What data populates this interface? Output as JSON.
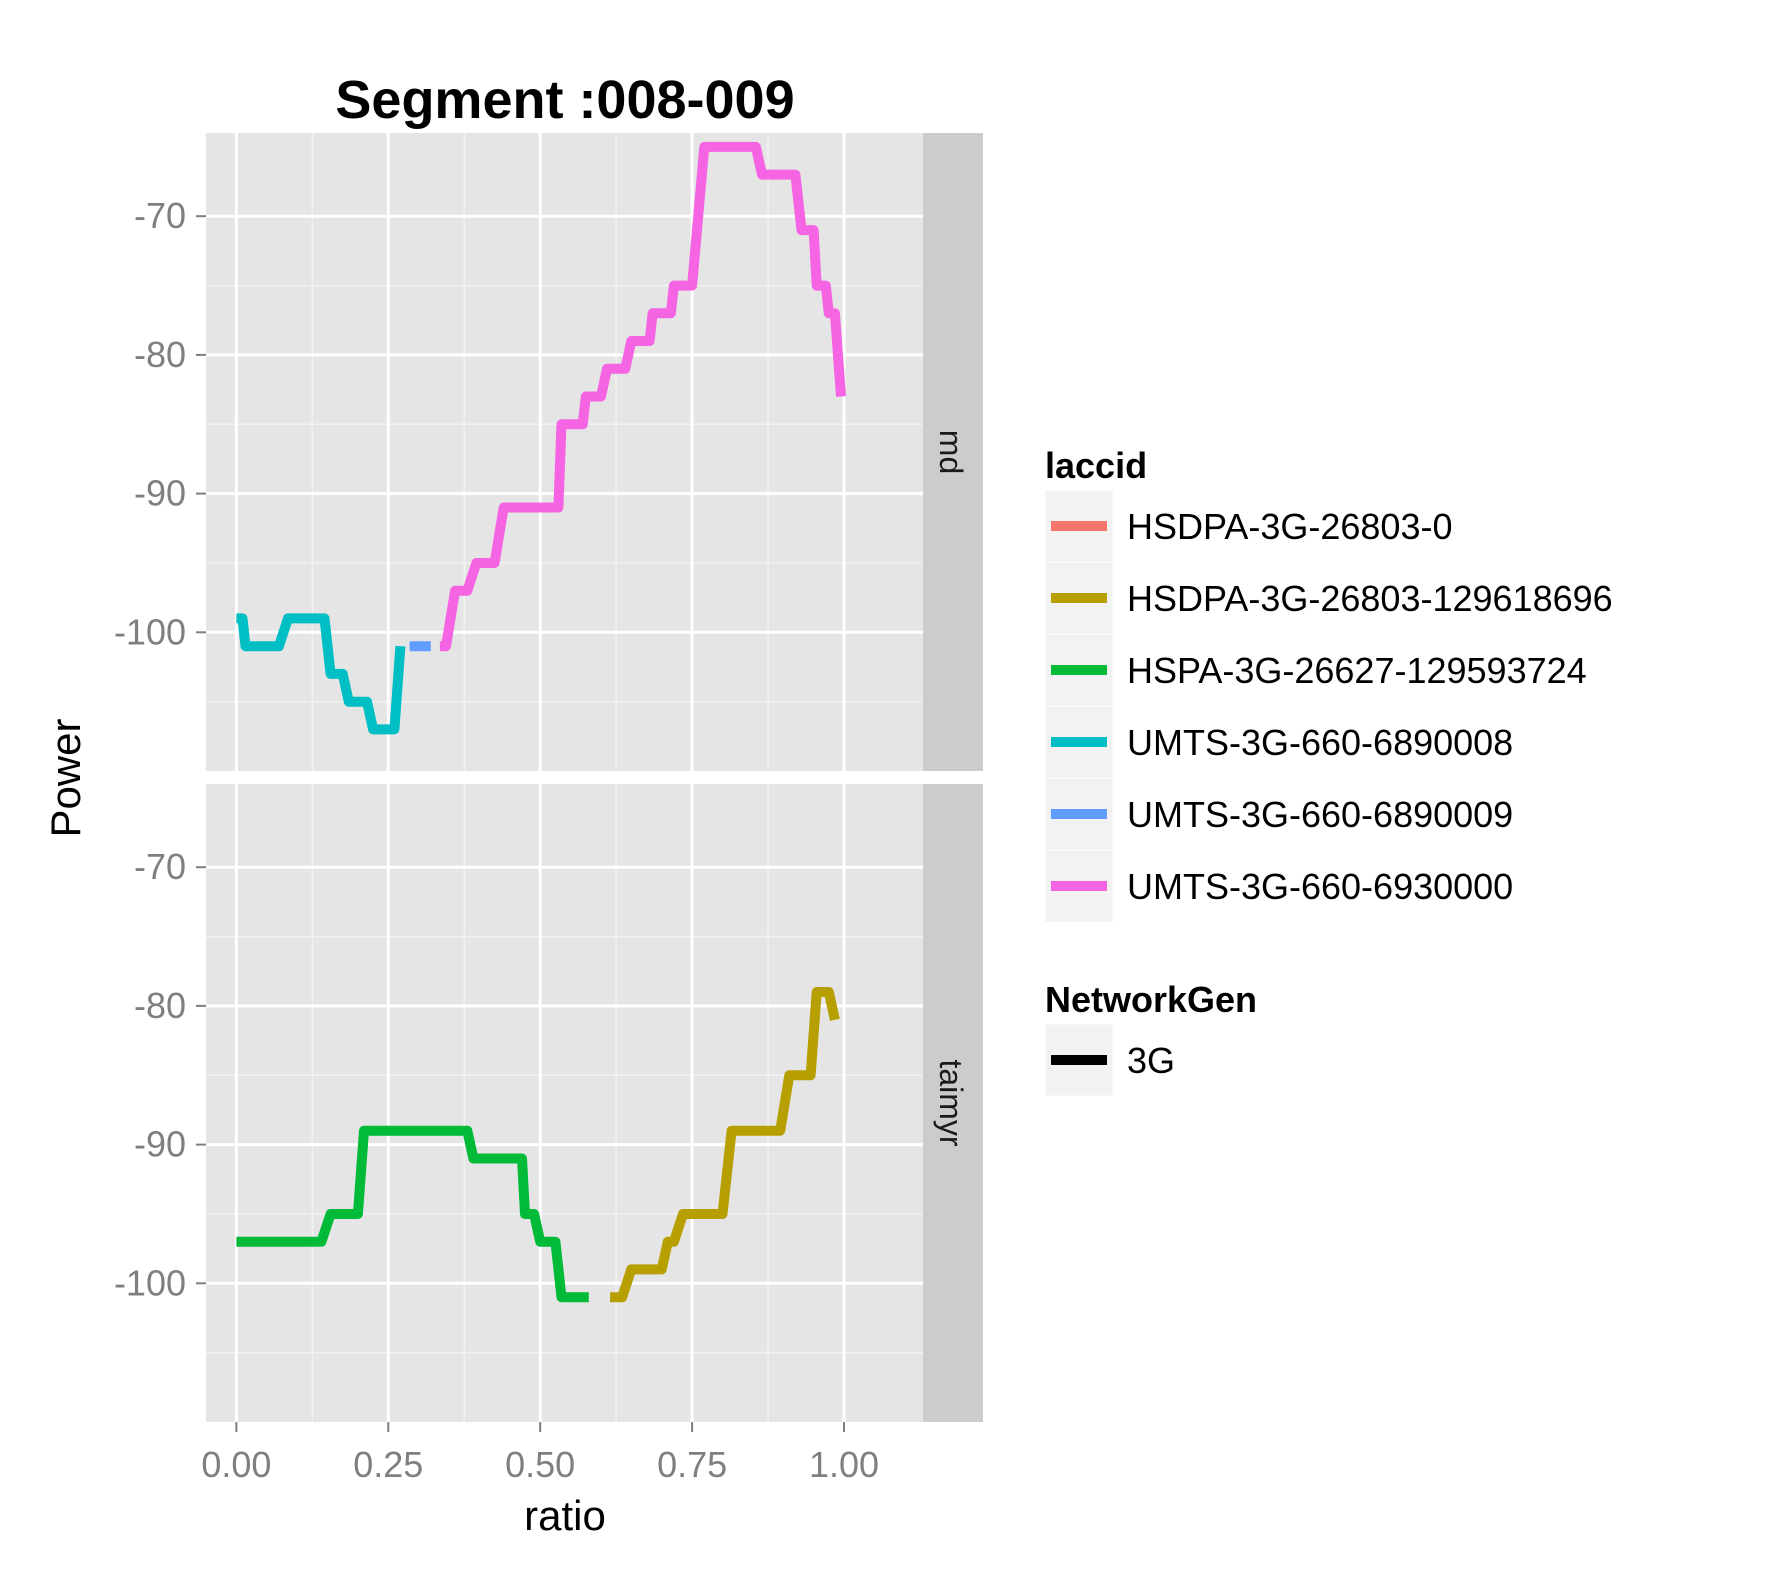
{
  "chart_data": {
    "type": "line",
    "title": "Segment :008-009",
    "xlabel": "ratio",
    "ylabel": "Power",
    "xlim": [
      -0.05,
      1.13
    ],
    "ylim": [
      -110,
      -64
    ],
    "x_ticks": [
      "0.00",
      "0.25",
      "0.50",
      "0.75",
      "1.00"
    ],
    "x_tick_values": [
      0,
      0.25,
      0.5,
      0.75,
      1
    ],
    "y_ticks": [
      "-70",
      "-80",
      "-90",
      "-100"
    ],
    "y_tick_values": [
      -70,
      -80,
      -90,
      -100
    ],
    "grid": true,
    "legend_position": "right",
    "panels": [
      {
        "label": "md",
        "series": [
          {
            "name": "UMTS-3G-660-6890008",
            "color": "#00BFC4",
            "points": [
              [
                0.0,
                -99
              ],
              [
                0.01,
                -99
              ],
              [
                0.015,
                -101
              ],
              [
                0.07,
                -101
              ],
              [
                0.085,
                -99
              ],
              [
                0.14,
                -99
              ],
              [
                0.145,
                -99
              ],
              [
                0.155,
                -103
              ],
              [
                0.175,
                -103
              ],
              [
                0.185,
                -105
              ],
              [
                0.215,
                -105
              ],
              [
                0.225,
                -107
              ],
              [
                0.26,
                -107
              ],
              [
                0.27,
                -101
              ]
            ]
          },
          {
            "name": "UMTS-3G-660-6890009",
            "color": "#619CFF",
            "points": [
              [
                0.285,
                -101
              ],
              [
                0.32,
                -101
              ]
            ]
          },
          {
            "name": "UMTS-3G-660-6930000",
            "color": "#F564E3",
            "points": [
              [
                0.335,
                -101
              ],
              [
                0.345,
                -101
              ],
              [
                0.36,
                -97
              ],
              [
                0.38,
                -97
              ],
              [
                0.395,
                -95
              ],
              [
                0.425,
                -95
              ],
              [
                0.44,
                -91
              ],
              [
                0.53,
                -91
              ],
              [
                0.535,
                -85
              ],
              [
                0.57,
                -85
              ],
              [
                0.575,
                -83
              ],
              [
                0.6,
                -83
              ],
              [
                0.61,
                -81
              ],
              [
                0.64,
                -81
              ],
              [
                0.65,
                -79
              ],
              [
                0.68,
                -79
              ],
              [
                0.685,
                -77
              ],
              [
                0.715,
                -77
              ],
              [
                0.72,
                -75
              ],
              [
                0.75,
                -75
              ],
              [
                0.77,
                -65
              ],
              [
                0.855,
                -65
              ],
              [
                0.865,
                -67
              ],
              [
                0.92,
                -67
              ],
              [
                0.93,
                -71
              ],
              [
                0.95,
                -71
              ],
              [
                0.955,
                -75
              ],
              [
                0.97,
                -75
              ],
              [
                0.975,
                -77
              ],
              [
                0.985,
                -77
              ],
              [
                0.995,
                -83
              ]
            ]
          }
        ]
      },
      {
        "label": "taimyr",
        "series": [
          {
            "name": "HSPA-3G-26627-129593724",
            "color": "#00BA38",
            "points": [
              [
                0.0,
                -97
              ],
              [
                0.14,
                -97
              ],
              [
                0.155,
                -95
              ],
              [
                0.2,
                -95
              ],
              [
                0.21,
                -89
              ],
              [
                0.38,
                -89
              ],
              [
                0.39,
                -91
              ],
              [
                0.47,
                -91
              ],
              [
                0.475,
                -95
              ],
              [
                0.49,
                -95
              ],
              [
                0.5,
                -97
              ],
              [
                0.525,
                -97
              ],
              [
                0.535,
                -101
              ],
              [
                0.58,
                -101
              ]
            ]
          },
          {
            "name": "HSDPA-3G-26803-129618696",
            "color": "#B79F00",
            "points": [
              [
                0.615,
                -101
              ],
              [
                0.635,
                -101
              ],
              [
                0.65,
                -99
              ],
              [
                0.7,
                -99
              ],
              [
                0.71,
                -97
              ],
              [
                0.72,
                -97
              ],
              [
                0.735,
                -95
              ],
              [
                0.8,
                -95
              ],
              [
                0.815,
                -89
              ],
              [
                0.895,
                -89
              ],
              [
                0.91,
                -85
              ],
              [
                0.945,
                -85
              ],
              [
                0.955,
                -79
              ],
              [
                0.975,
                -79
              ],
              [
                0.985,
                -81
              ]
            ]
          }
        ]
      }
    ],
    "legends": [
      {
        "title": "laccid",
        "entries": [
          {
            "label": "HSDPA-3G-26803-0",
            "color": "#F8766D"
          },
          {
            "label": "HSDPA-3G-26803-129618696",
            "color": "#B79F00"
          },
          {
            "label": "HSPA-3G-26627-129593724",
            "color": "#00BA38"
          },
          {
            "label": "UMTS-3G-660-6890008",
            "color": "#00BFC4"
          },
          {
            "label": "UMTS-3G-660-6890009",
            "color": "#619CFF"
          },
          {
            "label": "UMTS-3G-660-6930000",
            "color": "#F564E3"
          }
        ]
      },
      {
        "title": "NetworkGen",
        "entries": [
          {
            "label": "3G",
            "color": "#000000"
          }
        ]
      }
    ]
  }
}
